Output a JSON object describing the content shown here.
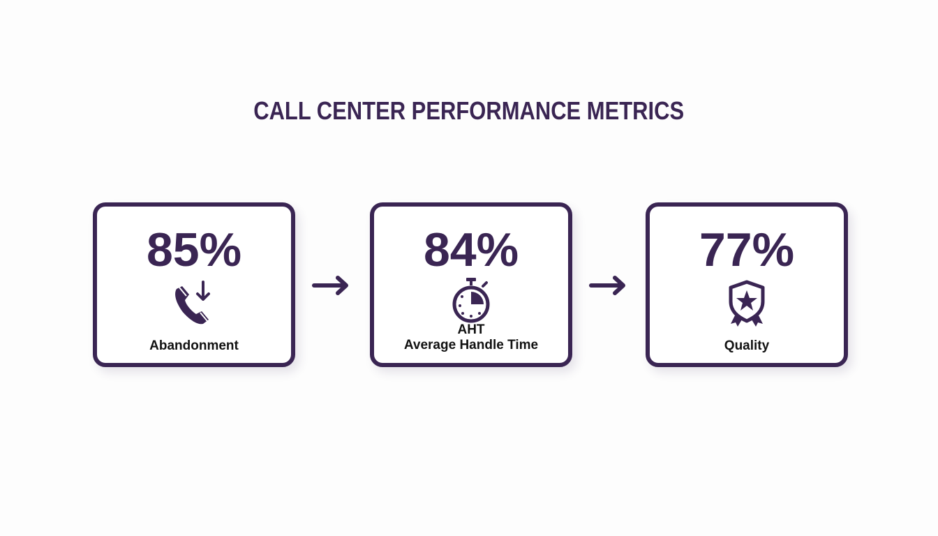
{
  "title": "CALL CENTER PERFORMANCE METRICS",
  "colors": {
    "accent": "#3a2553",
    "label": "#111111",
    "background": "#fdfdfd"
  },
  "metrics": [
    {
      "value": "85%",
      "icon": "phone-incoming-icon",
      "label_lines": [
        "Abandonment"
      ]
    },
    {
      "value": "84%",
      "icon": "stopwatch-icon",
      "label_lines": [
        "AHT",
        "Average Handle Time"
      ]
    },
    {
      "value": "77%",
      "icon": "shield-star-badge-icon",
      "label_lines": [
        "Quality"
      ]
    }
  ],
  "connectors": [
    "arrow-right-icon",
    "arrow-right-icon"
  ]
}
